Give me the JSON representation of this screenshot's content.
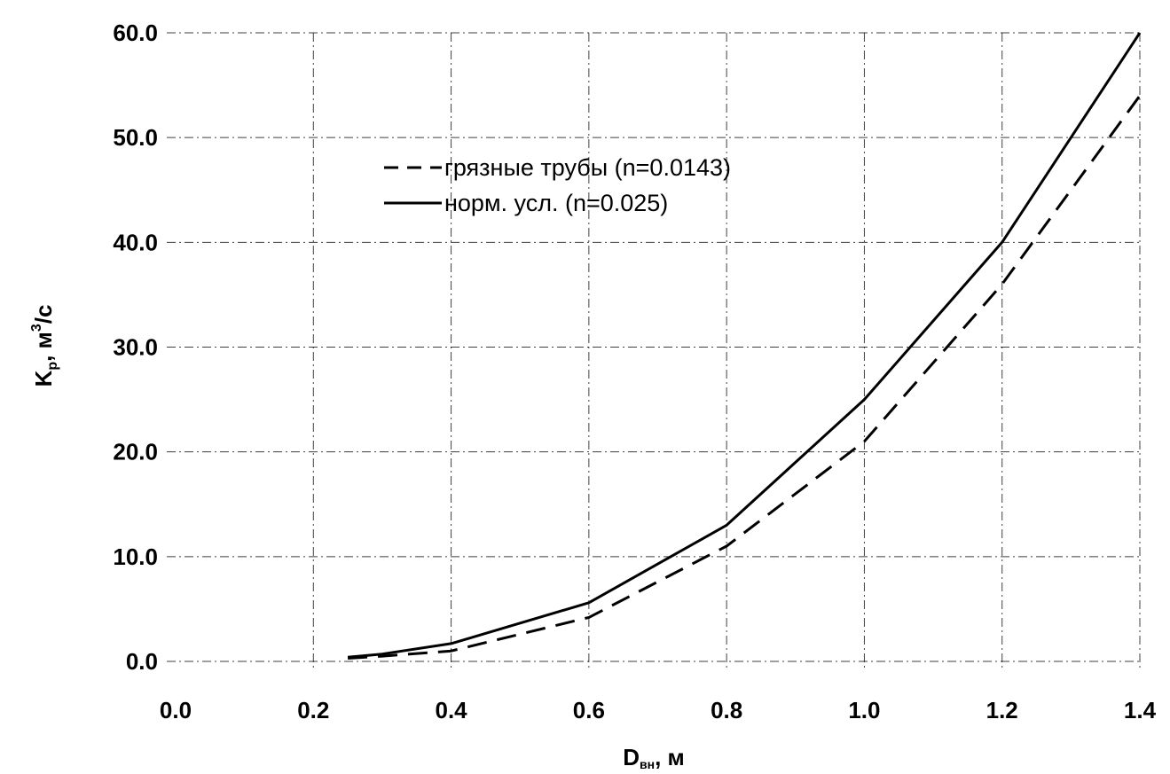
{
  "chart_data": {
    "type": "line",
    "xlabel": "D",
    "xlabel_sub": "вн",
    "xlabel_suffix": ", м",
    "ylabel": "K",
    "ylabel_sub": "р",
    "ylabel_suffix": ", м",
    "ylabel_sup": "3",
    "ylabel_end": "/с",
    "xlim": [
      0.0,
      1.4
    ],
    "ylim": [
      0.0,
      60.0
    ],
    "x_ticks": [
      "0.0",
      "0.2",
      "0.4",
      "0.6",
      "0.8",
      "1.0",
      "1.2",
      "1.4"
    ],
    "y_ticks": [
      "0.0",
      "10.0",
      "20.0",
      "30.0",
      "40.0",
      "50.0",
      "60.0"
    ],
    "grid": true,
    "legend_position": "top-center",
    "series": [
      {
        "name": "грязные трубы (n=0.0143)",
        "style": "dashed",
        "color": "#000000",
        "x": [
          0.25,
          0.3,
          0.4,
          0.6,
          0.8,
          1.0,
          1.2,
          1.4
        ],
        "y": [
          0.3,
          0.5,
          1.0,
          4.2,
          11.0,
          21.0,
          36.0,
          54.0
        ]
      },
      {
        "name": "норм. усл. (n=0.025)",
        "style": "solid",
        "color": "#000000",
        "x": [
          0.25,
          0.3,
          0.4,
          0.6,
          0.8,
          1.0,
          1.2,
          1.4
        ],
        "y": [
          0.4,
          0.7,
          1.7,
          5.6,
          13.0,
          25.0,
          40.0,
          60.0
        ]
      }
    ]
  }
}
